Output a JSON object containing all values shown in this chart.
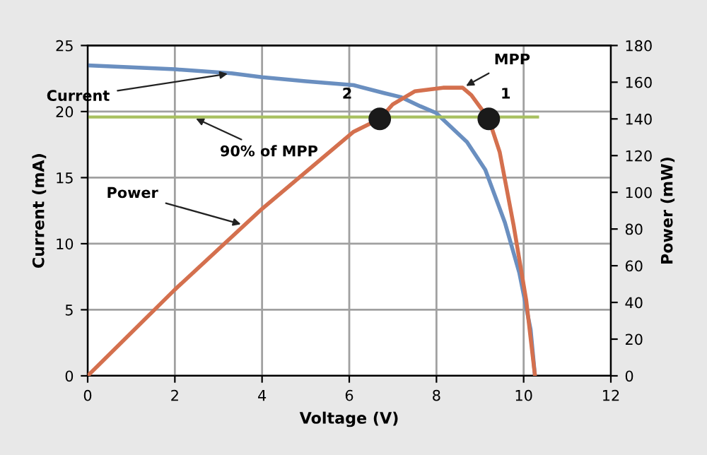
{
  "chart_data": {
    "type": "line",
    "xlabel": "Voltage (V)",
    "ylabel": "Current (mA)",
    "y2label": "Power (mW)",
    "xlim": [
      0,
      12
    ],
    "xticks": [
      0,
      2,
      4,
      6,
      8,
      10,
      12
    ],
    "ylim": [
      0,
      25
    ],
    "yticks": [
      0,
      5,
      10,
      15,
      20,
      25
    ],
    "y2lim": [
      0,
      180
    ],
    "y2ticks": [
      0,
      20,
      40,
      60,
      80,
      100,
      120,
      140,
      160,
      180
    ],
    "grid": true,
    "marker": "none",
    "line_style": "solid",
    "series": [
      {
        "color": "#6a8fc0",
        "x": [
          0,
          2,
          3.3,
          4,
          5,
          6.1,
          6.8,
          7.18,
          7.63,
          7.99,
          8.7,
          9.12,
          9.57,
          9.9,
          10.16,
          10.26
        ],
        "values": [
          23.5,
          23.2,
          22.9,
          22.6,
          22.3,
          22.0,
          21.4,
          21.1,
          20.4,
          19.9,
          17.7,
          15.6,
          11.6,
          7.8,
          3.5,
          0
        ]
      },
      {
        "type": "line",
        "axis": "y2",
        "color": "#d4704e",
        "x": [
          0,
          2,
          4,
          6.1,
          6.7,
          7.0,
          7.5,
          8.15,
          8.6,
          8.8,
          9.2,
          9.45,
          9.77,
          10.06,
          10.26
        ],
        "values": [
          0,
          47,
          91,
          133,
          140,
          148,
          155,
          157,
          157,
          153,
          140,
          122,
          82,
          41,
          0
        ]
      },
      {
        "type": "scatter",
        "axis": "y2",
        "color": "#1a1a1a",
        "marker": "circle",
        "x": [
          6.7,
          9.2
        ],
        "values": [
          140,
          140
        ]
      }
    ],
    "ref_lines": [
      {
        "axis": "y2",
        "value": 141,
        "color": "#a8c060"
      }
    ],
    "annotations": [
      {
        "text": "Current",
        "x": 3.3,
        "y": 22.9
      },
      {
        "text": "Power",
        "x": 3.6,
        "y": 11.4
      },
      {
        "text": "90% of MPP",
        "x": 2.4,
        "y": 19.6
      },
      {
        "text": "MPP",
        "x": 8.6,
        "y": 21.8
      },
      {
        "text": "2",
        "x": 6.7,
        "y": 20.1
      },
      {
        "text": "1",
        "x": 9.2,
        "y": 20.1
      }
    ]
  }
}
